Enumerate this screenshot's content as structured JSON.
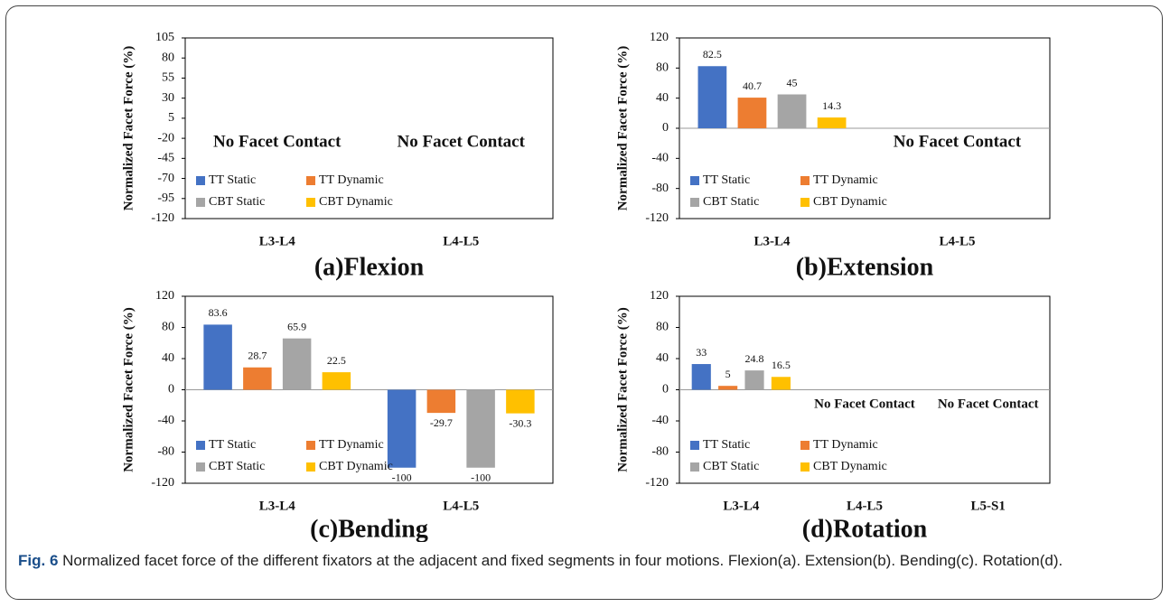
{
  "chart_data": [
    {
      "type": "bar",
      "title": "(a)Flexion",
      "y_label": "Normalized Facet Force (%)",
      "categories": [
        "L3-L4",
        "L4-L5"
      ],
      "series": [
        {
          "name": "TT Static",
          "color": "#4472c4",
          "values": [
            null,
            null
          ]
        },
        {
          "name": "TT Dynamic",
          "color": "#ed7d31",
          "values": [
            null,
            null
          ]
        },
        {
          "name": "CBT Static",
          "color": "#a5a5a5",
          "values": [
            null,
            null
          ]
        },
        {
          "name": "CBT Dynamic",
          "color": "#ffc000",
          "values": [
            null,
            null
          ]
        }
      ],
      "annotations": [
        "No Facet Contact",
        "No Facet Contact"
      ],
      "ylim": [
        -120,
        105
      ],
      "yticks": [
        105,
        80,
        55,
        30,
        5,
        -20,
        -45,
        -70,
        -95,
        -120
      ],
      "legend": "lower left"
    },
    {
      "type": "bar",
      "title": "(b)Extension",
      "y_label": "Normalized Facet Force (%)",
      "categories": [
        "L3-L4",
        "L4-L5"
      ],
      "series": [
        {
          "name": "TT Static",
          "color": "#4472c4",
          "values": [
            82.5,
            null
          ]
        },
        {
          "name": "TT Dynamic",
          "color": "#ed7d31",
          "values": [
            40.7,
            null
          ]
        },
        {
          "name": "CBT Static",
          "color": "#a5a5a5",
          "values": [
            45,
            null
          ]
        },
        {
          "name": "CBT Dynamic",
          "color": "#ffc000",
          "values": [
            14.3,
            null
          ]
        }
      ],
      "annotations": [
        null,
        "No Facet Contact"
      ],
      "ylim": [
        -120,
        120
      ],
      "yticks": [
        120,
        80,
        40,
        0,
        -40,
        -80,
        -120
      ],
      "legend": "lower left"
    },
    {
      "type": "bar",
      "title": "(c)Bending",
      "y_label": "Normalized Facet Force (%)",
      "categories": [
        "L3-L4",
        "L4-L5"
      ],
      "series": [
        {
          "name": "TT Static",
          "color": "#4472c4",
          "values": [
            83.6,
            -100
          ]
        },
        {
          "name": "TT Dynamic",
          "color": "#ed7d31",
          "values": [
            28.7,
            -29.7
          ]
        },
        {
          "name": "CBT Static",
          "color": "#a5a5a5",
          "values": [
            65.9,
            -100
          ]
        },
        {
          "name": "CBT Dynamic",
          "color": "#ffc000",
          "values": [
            22.5,
            -30.3
          ]
        }
      ],
      "annotations": [
        null,
        null
      ],
      "ylim": [
        -120,
        120
      ],
      "yticks": [
        120,
        80,
        40,
        0,
        -40,
        -80,
        -120
      ],
      "legend": "lower left"
    },
    {
      "type": "bar",
      "title": "(d)Rotation",
      "y_label": "Normalized Facet Force (%)",
      "categories": [
        "L3-L4",
        "L4-L5",
        "L5-S1"
      ],
      "series": [
        {
          "name": "TT Static",
          "color": "#4472c4",
          "values": [
            33,
            null,
            null
          ]
        },
        {
          "name": "TT Dynamic",
          "color": "#ed7d31",
          "values": [
            5,
            null,
            null
          ]
        },
        {
          "name": "CBT Static",
          "color": "#a5a5a5",
          "values": [
            24.8,
            null,
            null
          ]
        },
        {
          "name": "CBT Dynamic",
          "color": "#ffc000",
          "values": [
            16.5,
            null,
            null
          ]
        }
      ],
      "annotations": [
        null,
        "No Facet Contact",
        "No Facet Contact"
      ],
      "ylim": [
        -120,
        120
      ],
      "yticks": [
        120,
        80,
        40,
        0,
        -40,
        -80,
        -120
      ],
      "legend": "lower left"
    }
  ],
  "caption": {
    "label": "Fig. 6",
    "text": "Normalized facet force of the different fixators at the adjacent and fixed segments in four motions. Flexion(a). Extension(b). Bending(c). Rotation(d)."
  }
}
